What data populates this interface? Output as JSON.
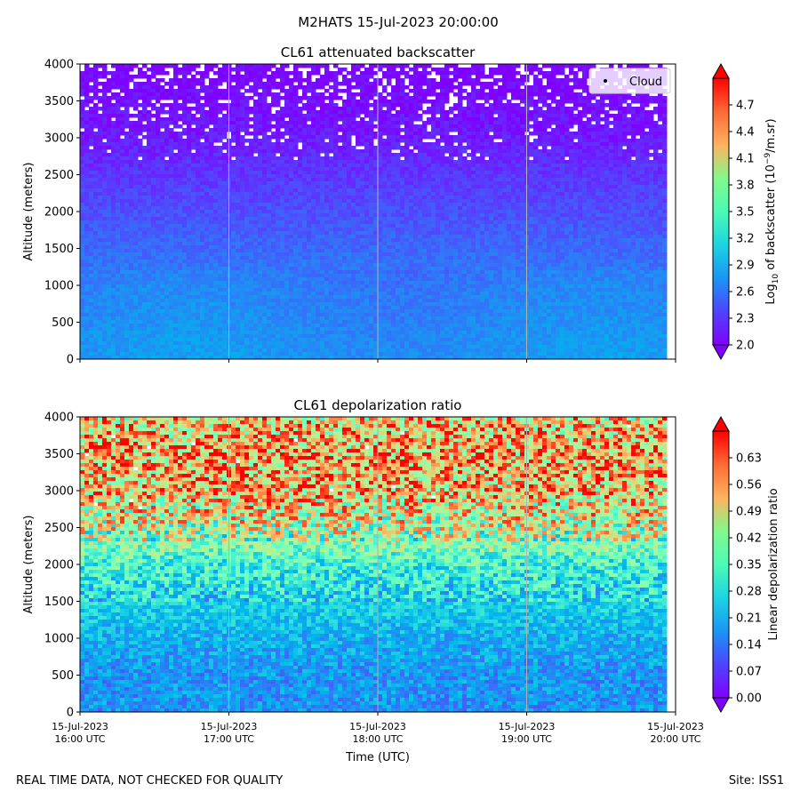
{
  "figure": {
    "suptitle": "M2HATS 15-Jul-2023 20:00:00",
    "footer_left": "REAL TIME DATA, NOT CHECKED FOR QUALITY",
    "footer_right": "Site: ISS1"
  },
  "chart_data": [
    {
      "type": "heatmap",
      "title": "CL61 attenuated backscatter",
      "ylabel": "Altitude (meters)",
      "xlabel": "",
      "ylim": [
        0,
        4000
      ],
      "yticks": [
        0,
        500,
        1000,
        1500,
        2000,
        2500,
        3000,
        3500,
        4000
      ],
      "xticks": [],
      "xlim_hours": [
        16,
        20
      ],
      "x_gridlines_hours": [
        17,
        18,
        19
      ],
      "colormap": "rainbow",
      "colorbar": {
        "label_main": "Log",
        "label_sub": "10",
        "label_rest": " of backscatter (10",
        "label_sup": "−9",
        "label_end": "/m.sr)",
        "vmin": 2.0,
        "vmax": 5.0,
        "ticks": [
          "2.0",
          "2.3",
          "2.6",
          "2.9",
          "3.2",
          "3.5",
          "3.8",
          "4.1",
          "4.4",
          "4.7"
        ]
      },
      "legend": {
        "entries": [
          "Cloud"
        ],
        "position": "upper right",
        "marker": "black dot"
      },
      "profile_description_values": {
        "altitudes": [
          0,
          500,
          1000,
          1500,
          2000,
          2500,
          3000,
          3500,
          4000
        ],
        "typical_log10": [
          2.6,
          2.55,
          2.5,
          2.4,
          2.3,
          2.2,
          2.1,
          2.05,
          2.0
        ]
      }
    },
    {
      "type": "heatmap",
      "title": "CL61 depolarization ratio",
      "ylabel": "Altitude (meters)",
      "xlabel": "Time (UTC)",
      "ylim": [
        0,
        4000
      ],
      "yticks": [
        0,
        500,
        1000,
        1500,
        2000,
        2500,
        3000,
        3500,
        4000
      ],
      "xticks": [
        {
          "line1": "15-Jul-2023",
          "line2": "16:00 UTC"
        },
        {
          "line1": "15-Jul-2023",
          "line2": "17:00 UTC"
        },
        {
          "line1": "15-Jul-2023",
          "line2": "18:00 UTC"
        },
        {
          "line1": "15-Jul-2023",
          "line2": "19:00 UTC"
        },
        {
          "line1": "15-Jul-2023",
          "line2": "20:00 UTC"
        }
      ],
      "xlim_hours": [
        16,
        20
      ],
      "x_gridlines_hours": [
        17,
        18,
        19
      ],
      "colormap": "rainbow",
      "colorbar": {
        "label": "Linear depolarization ratio",
        "vmin": 0.0,
        "vmax": 0.7,
        "ticks": [
          "0.00",
          "0.07",
          "0.14",
          "0.21",
          "0.28",
          "0.35",
          "0.42",
          "0.49",
          "0.56",
          "0.63"
        ]
      },
      "profile_description_values": {
        "altitudes": [
          0,
          500,
          1000,
          1500,
          2000,
          2500,
          3000,
          3500,
          4000
        ],
        "typical_ratio": [
          0.14,
          0.14,
          0.17,
          0.22,
          0.28,
          0.42,
          0.52,
          0.55,
          0.5
        ]
      }
    }
  ]
}
